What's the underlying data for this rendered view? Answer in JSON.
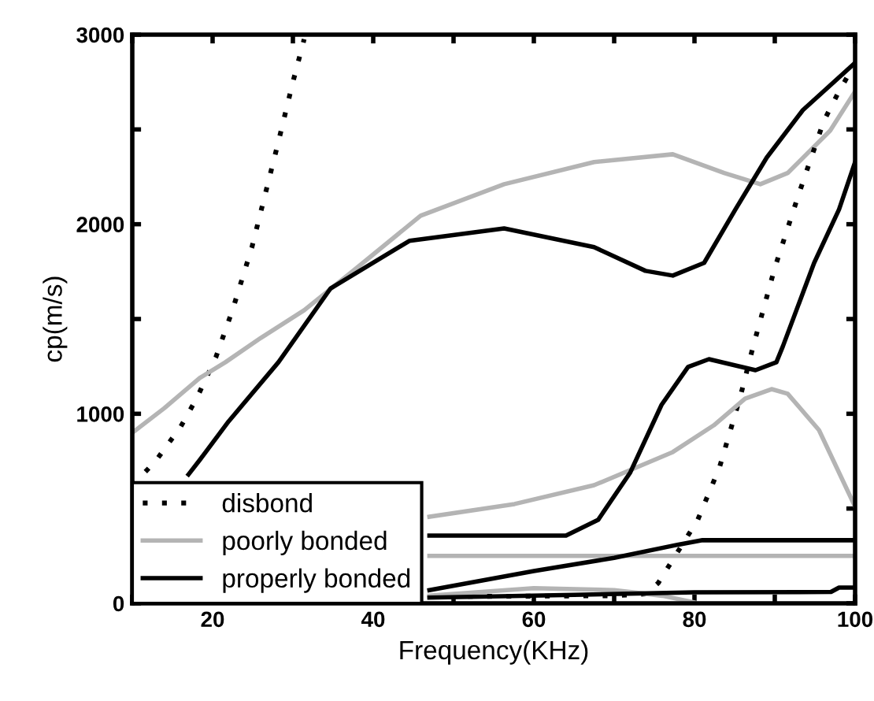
{
  "chart_data": {
    "type": "line",
    "xlabel": "Frequency(KHz)",
    "ylabel": "cp(m/s)",
    "xlim": [
      10,
      100
    ],
    "ylim": [
      0,
      3000
    ],
    "xticks": [
      {
        "value": 10,
        "label": null
      },
      20,
      {
        "value": 30,
        "label": null
      },
      40,
      {
        "value": 50,
        "label": null
      },
      60,
      {
        "value": 70,
        "label": null
      },
      80,
      {
        "value": 90,
        "label": null
      },
      100
    ],
    "yticks": [
      0,
      {
        "value": 500,
        "label": null
      },
      1000,
      {
        "value": 1500,
        "label": null
      },
      2000,
      {
        "value": 2500,
        "label": null
      },
      3000
    ],
    "grid": false,
    "legend": "bottom left",
    "series": [
      {
        "name": "disbond",
        "color": "#000000",
        "line_style": "dotted",
        "x": [
          10,
          13,
          16,
          18,
          20.4,
          22.5,
          24.9,
          26.5,
          28.2,
          30,
          31.4
        ],
        "values": [
          620,
          756,
          930,
          1080,
          1297,
          1550,
          1879,
          2150,
          2436,
          2750,
          2976
        ]
      },
      {
        "name": "poorly bonded",
        "color": "#b4b4b4",
        "line_style": "solid",
        "x": [
          10,
          14,
          18.4,
          21.6,
          26,
          31.4,
          38,
          45.9,
          56.3,
          67.5,
          77.3,
          83.7,
          88.2,
          91.6,
          96.9,
          100
        ],
        "values": [
          900,
          1030,
          1189,
          1272,
          1400,
          1546,
          1771,
          2045,
          2211,
          2328,
          2369,
          2270,
          2211,
          2270,
          2494,
          2700
        ]
      },
      {
        "name": "properly bonded",
        "color": "#000000",
        "line_style": "solid",
        "x": [
          17,
          18.4,
          22,
          28.2,
          34.7,
          44.5,
          56.3,
          67.5,
          73.9,
          77.3,
          81.2,
          85.1,
          89,
          93.5,
          100
        ],
        "values": [
          680,
          756,
          960,
          1272,
          1662,
          1912,
          1978,
          1879,
          1754,
          1729,
          1796,
          2078,
          2352,
          2602,
          2851
        ]
      },
      {
        "color": "#000000",
        "line_style": "dotted",
        "x": [
          47,
          60,
          70,
          74,
          75.5,
          80.4,
          83.1,
          85.7,
          87.3,
          90,
          93,
          96.1,
          97.8,
          100
        ],
        "values": [
          35,
          38,
          40,
          50,
          108,
          440,
          715,
          1089,
          1355,
          1770,
          2161,
          2544,
          2685,
          2850
        ]
      },
      {
        "color": "#b4b4b4",
        "line_style": "solid",
        "x": [
          47,
          57.6,
          67.5,
          77.3,
          82.4,
          86.3,
          89.6,
          91.6,
          95.5,
          100
        ],
        "values": [
          457,
          524,
          623,
          798,
          939,
          1080,
          1130,
          1106,
          914,
          510
        ]
      },
      {
        "color": "#b4b4b4",
        "line_style": "solid",
        "x": [
          47,
          100
        ],
        "values": [
          250,
          250
        ]
      },
      {
        "color": "#b4b4b4",
        "line_style": "solid",
        "x": [
          47,
          60,
          70,
          76,
          80
        ],
        "values": [
          40,
          80,
          70,
          40,
          5
        ]
      },
      {
        "color": "#000000",
        "line_style": "solid",
        "x": [
          47,
          64,
          68,
          72,
          75.9,
          79.2,
          81.8,
          85.1,
          87.6,
          90.2,
          91,
          94.9,
          98,
          100
        ],
        "values": [
          357,
          357,
          440,
          690,
          1047,
          1247,
          1288,
          1255,
          1230,
          1272,
          1355,
          1796,
          2078,
          2328
        ]
      },
      {
        "color": "#000000",
        "line_style": "solid",
        "x": [
          47,
          60,
          70,
          78,
          81,
          100
        ],
        "values": [
          70,
          170,
          240,
          310,
          333,
          333
        ]
      },
      {
        "color": "#000000",
        "line_style": "solid",
        "x": [
          47,
          65,
          80,
          97,
          98,
          100
        ],
        "values": [
          30,
          45,
          58,
          60,
          83,
          83
        ]
      }
    ]
  }
}
